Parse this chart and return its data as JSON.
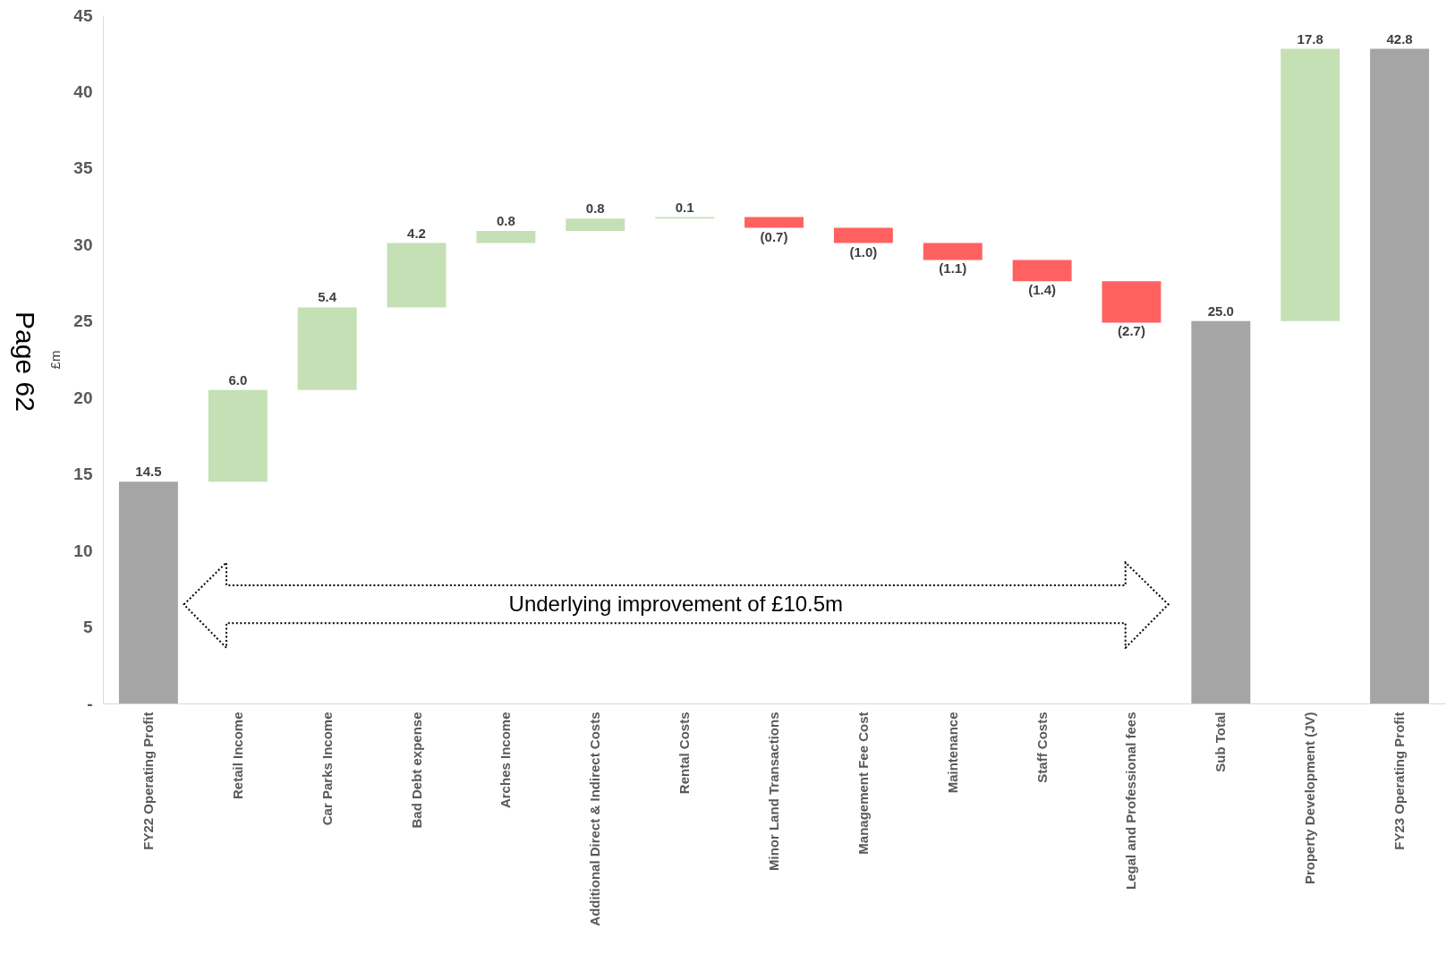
{
  "chart_data": {
    "type": "bar",
    "ylabel": "£m",
    "categories": [
      "FY22 Operating Profit",
      "Retail Income",
      "Car Parks Income",
      "Bad Debt expense",
      "Arches Income",
      "Additional Direct & Indirect Costs",
      "Rental Costs",
      "Minor Land Transactions",
      "Management Fee Cost",
      "Maintenance",
      "Staff Costs",
      "Legal and Professional fees",
      "Sub Total",
      "Property Development (JV)",
      "FY23 Operating Profit"
    ],
    "values": [
      14.5,
      6.0,
      5.4,
      4.2,
      0.8,
      0.8,
      0.1,
      -0.7,
      -1.0,
      -1.1,
      -1.4,
      -2.7,
      25.0,
      17.8,
      42.8
    ],
    "base": [
      0,
      14.5,
      20.5,
      25.9,
      30.1,
      30.9,
      31.7,
      31.8,
      31.1,
      30.1,
      29.0,
      27.6,
      0,
      25.0,
      0
    ],
    "colors": [
      "#a5a5a5",
      "#c5e0b4",
      "#c5e0b4",
      "#c5e0b4",
      "#c5e0b4",
      "#c5e0b4",
      "#c5e0b4",
      "#ff6161",
      "#ff6161",
      "#ff6161",
      "#ff6161",
      "#ff6161",
      "#a5a5a5",
      "#c5e0b4",
      "#a5a5a5"
    ],
    "value_labels": [
      "14.5",
      "6.0",
      "5.4",
      "4.2",
      "0.8",
      "0.8",
      "0.1",
      "(0.7)",
      "(1.0)",
      "(1.1)",
      "(1.4)",
      "(2.7)",
      "25.0",
      "17.8",
      "42.8"
    ],
    "ylim": [
      0,
      45
    ],
    "yticks": [
      {
        "value": 0,
        "label": "-"
      },
      5,
      10,
      15,
      20,
      25,
      30,
      35,
      40,
      45
    ],
    "annotations": [
      "Underlying improvement of £10.5m",
      "Page 62"
    ]
  }
}
